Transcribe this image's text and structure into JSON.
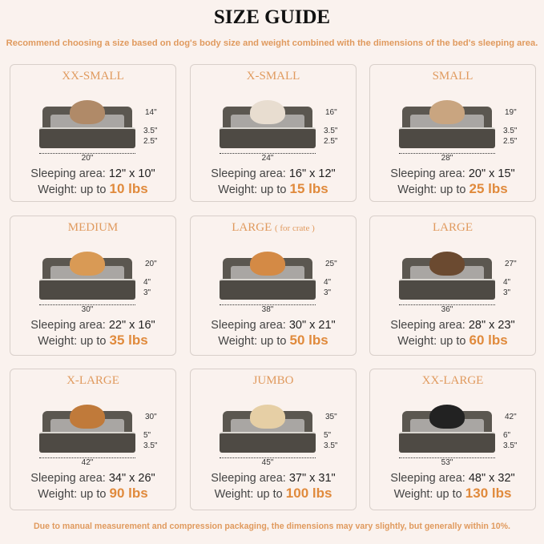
{
  "title": "SIZE GUIDE",
  "subtitle": "Recommend choosing a size based on dog's body size and weight combined with the dimensions of the bed's sleeping area.",
  "footer": "Due to manual measurement and compression packaging, the dimensions may vary slightly, but generally within 10%.",
  "labels": {
    "sleeping_area": "Sleeping area:",
    "weight": "Weight:  up to"
  },
  "sizes": [
    {
      "name": "XX-SMALL",
      "note": "",
      "length": "20\"",
      "depth": "14\"",
      "bolster": "3.5\"",
      "base": "2.5\"",
      "area": "12\" x 10\"",
      "weight": "10 lbs",
      "pet_color": "#b08a68"
    },
    {
      "name": "X-SMALL",
      "note": "",
      "length": "24\"",
      "depth": "16\"",
      "bolster": "3.5\"",
      "base": "2.5\"",
      "area": "16\" x 12\"",
      "weight": "15 lbs",
      "pet_color": "#e8ddd0"
    },
    {
      "name": "SMALL",
      "note": "",
      "length": "28\"",
      "depth": "19\"",
      "bolster": "3.5\"",
      "base": "2.5\"",
      "area": "20\" x 15\"",
      "weight": "25 lbs",
      "pet_color": "#c9a580"
    },
    {
      "name": "MEDIUM",
      "note": "",
      "length": "30\"",
      "depth": "20\"",
      "bolster": "4\"",
      "base": "3\"",
      "area": "22\" x 16\"",
      "weight": "35 lbs",
      "pet_color": "#d99a55"
    },
    {
      "name": "LARGE",
      "note": "( for crate )",
      "length": "38\"",
      "depth": "25\"",
      "bolster": "4\"",
      "base": "3\"",
      "area": "30\" x 21\"",
      "weight": "50 lbs",
      "pet_color": "#d48a45"
    },
    {
      "name": "LARGE",
      "note": "",
      "length": "36\"",
      "depth": "27\"",
      "bolster": "4\"",
      "base": "3\"",
      "area": "28\" x 23\"",
      "weight": "60 lbs",
      "pet_color": "#6b4a30"
    },
    {
      "name": "X-LARGE",
      "note": "",
      "length": "42\"",
      "depth": "30\"",
      "bolster": "5\"",
      "base": "3.5\"",
      "area": "34\" x 26\"",
      "weight": "90 lbs",
      "pet_color": "#c07a3a"
    },
    {
      "name": "JUMBO",
      "note": "",
      "length": "45\"",
      "depth": "35\"",
      "bolster": "5\"",
      "base": "3.5\"",
      "area": "37\" x 31\"",
      "weight": "100 lbs",
      "pet_color": "#e6cfa5"
    },
    {
      "name": "XX-LARGE",
      "note": "",
      "length": "53\"",
      "depth": "42\"",
      "bolster": "6\"",
      "base": "3.5\"",
      "area": "48\" x 32\"",
      "weight": "130 lbs",
      "pet_color": "#222222"
    }
  ]
}
